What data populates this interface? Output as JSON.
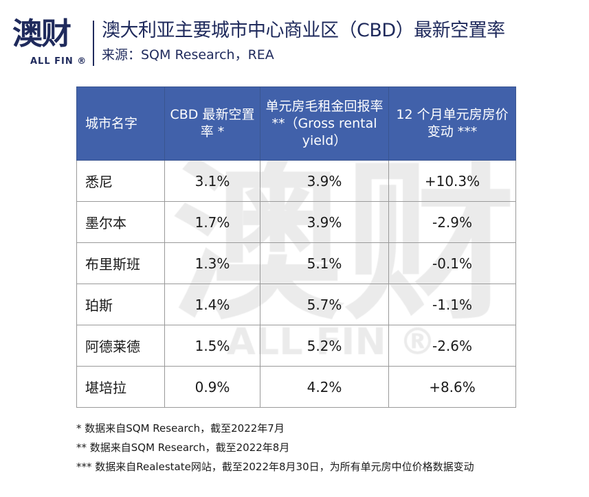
{
  "logo": {
    "cn": "澳财",
    "en": "ALL FIN ®"
  },
  "title": "澳大利亚主要城市中心商业区（CBD）最新空置率",
  "source": "来源：SQM Research，REA",
  "watermark": {
    "cn": "澳财",
    "en": "ALL FIN ®"
  },
  "table": {
    "headers": [
      "城市名字",
      "CBD 最新空置率 *",
      "单元房毛租金回报率 **（Gross rental yield）",
      "12 个月单元房房价变动 ***"
    ],
    "rows": [
      [
        "悉尼",
        "3.1%",
        "3.9%",
        "+10.3%"
      ],
      [
        "墨尔本",
        "1.7%",
        "3.9%",
        "-2.9%"
      ],
      [
        "布里斯班",
        "1.3%",
        "5.1%",
        "-0.1%"
      ],
      [
        "珀斯",
        "1.4%",
        "5.7%",
        "-1.1%"
      ],
      [
        "阿德莱德",
        "1.5%",
        "5.2%",
        "-2.6%"
      ],
      [
        "堪培拉",
        "0.9%",
        "4.2%",
        "+8.6%"
      ]
    ]
  },
  "notes": [
    "* 数据来自SQM Research，截至2022年7月",
    "** 数据来自SQM Research，截至2022年8月",
    "*** 数据来自Realestate网站，截至2022年8月30日，为所有单元房中位价格数据变动"
  ],
  "colors": {
    "header": "#4161aa",
    "brand": "#1f2a5c"
  }
}
